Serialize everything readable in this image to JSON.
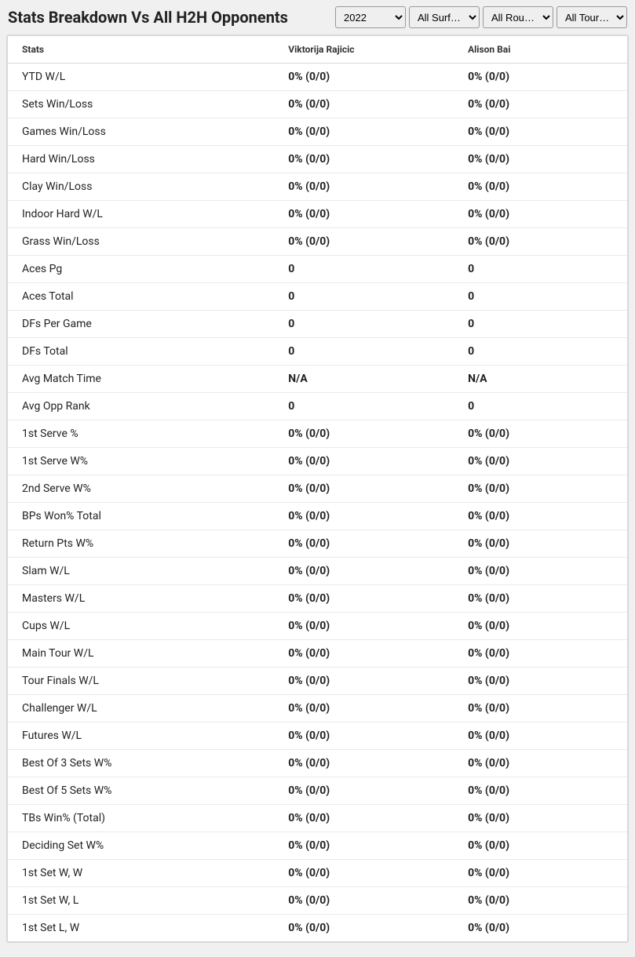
{
  "header": {
    "title": "Stats Breakdown Vs All H2H Opponents",
    "filters": {
      "year": "2022",
      "surface": "All Surf…",
      "round": "All Rou…",
      "tour": "All Tour…"
    }
  },
  "table": {
    "columns": {
      "stats": "Stats",
      "player1": "Viktorija Rajicic",
      "player2": "Alison Bai"
    },
    "rows": [
      {
        "stat": "YTD W/L",
        "p1": "0% (0/0)",
        "p2": "0% (0/0)"
      },
      {
        "stat": "Sets Win/Loss",
        "p1": "0% (0/0)",
        "p2": "0% (0/0)"
      },
      {
        "stat": "Games Win/Loss",
        "p1": "0% (0/0)",
        "p2": "0% (0/0)"
      },
      {
        "stat": "Hard Win/Loss",
        "p1": "0% (0/0)",
        "p2": "0% (0/0)"
      },
      {
        "stat": "Clay Win/Loss",
        "p1": "0% (0/0)",
        "p2": "0% (0/0)"
      },
      {
        "stat": "Indoor Hard W/L",
        "p1": "0% (0/0)",
        "p2": "0% (0/0)"
      },
      {
        "stat": "Grass Win/Loss",
        "p1": "0% (0/0)",
        "p2": "0% (0/0)"
      },
      {
        "stat": "Aces Pg",
        "p1": "0",
        "p2": "0"
      },
      {
        "stat": "Aces Total",
        "p1": "0",
        "p2": "0"
      },
      {
        "stat": "DFs Per Game",
        "p1": "0",
        "p2": "0"
      },
      {
        "stat": "DFs Total",
        "p1": "0",
        "p2": "0"
      },
      {
        "stat": "Avg Match Time",
        "p1": "N/A",
        "p2": "N/A"
      },
      {
        "stat": "Avg Opp Rank",
        "p1": "0",
        "p2": "0"
      },
      {
        "stat": "1st Serve %",
        "p1": "0% (0/0)",
        "p2": "0% (0/0)"
      },
      {
        "stat": "1st Serve W%",
        "p1": "0% (0/0)",
        "p2": "0% (0/0)"
      },
      {
        "stat": "2nd Serve W%",
        "p1": "0% (0/0)",
        "p2": "0% (0/0)"
      },
      {
        "stat": "BPs Won% Total",
        "p1": "0% (0/0)",
        "p2": "0% (0/0)"
      },
      {
        "stat": "Return Pts W%",
        "p1": "0% (0/0)",
        "p2": "0% (0/0)"
      },
      {
        "stat": "Slam W/L",
        "p1": "0% (0/0)",
        "p2": "0% (0/0)"
      },
      {
        "stat": "Masters W/L",
        "p1": "0% (0/0)",
        "p2": "0% (0/0)"
      },
      {
        "stat": "Cups W/L",
        "p1": "0% (0/0)",
        "p2": "0% (0/0)"
      },
      {
        "stat": "Main Tour W/L",
        "p1": "0% (0/0)",
        "p2": "0% (0/0)"
      },
      {
        "stat": "Tour Finals W/L",
        "p1": "0% (0/0)",
        "p2": "0% (0/0)"
      },
      {
        "stat": "Challenger W/L",
        "p1": "0% (0/0)",
        "p2": "0% (0/0)"
      },
      {
        "stat": "Futures W/L",
        "p1": "0% (0/0)",
        "p2": "0% (0/0)"
      },
      {
        "stat": "Best Of 3 Sets W%",
        "p1": "0% (0/0)",
        "p2": "0% (0/0)"
      },
      {
        "stat": "Best Of 5 Sets W%",
        "p1": "0% (0/0)",
        "p2": "0% (0/0)"
      },
      {
        "stat": "TBs Win% (Total)",
        "p1": "0% (0/0)",
        "p2": "0% (0/0)"
      },
      {
        "stat": "Deciding Set W%",
        "p1": "0% (0/0)",
        "p2": "0% (0/0)"
      },
      {
        "stat": "1st Set W, W",
        "p1": "0% (0/0)",
        "p2": "0% (0/0)"
      },
      {
        "stat": "1st Set W, L",
        "p1": "0% (0/0)",
        "p2": "0% (0/0)"
      },
      {
        "stat": "1st Set L, W",
        "p1": "0% (0/0)",
        "p2": "0% (0/0)"
      }
    ]
  }
}
